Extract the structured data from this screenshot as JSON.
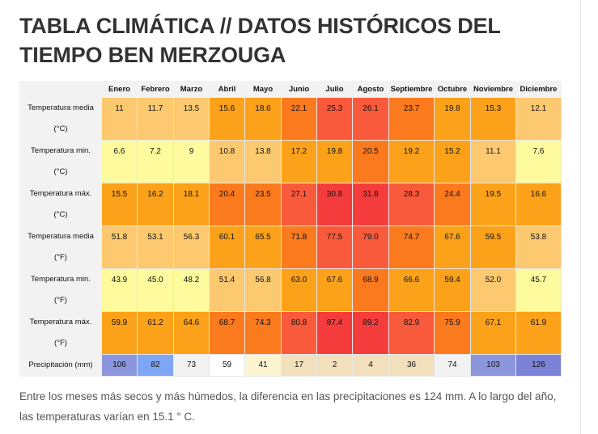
{
  "title": "TABLA CLIMÁTICA // DATOS HISTÓRICOS DEL TIEMPO BEN MERZOUGA",
  "table": {
    "months": [
      "Enero",
      "Febrero",
      "Marzo",
      "Abril",
      "Mayo",
      "Junio",
      "Julio",
      "Agosto",
      "Septiembre",
      "Octubre",
      "Noviembre",
      "Diciembre"
    ],
    "rows": [
      {
        "label": "Temperatura media",
        "unit": "(°C)",
        "values": [
          "11",
          "11.7",
          "13.5",
          "15.6",
          "18.6",
          "22.1",
          "25.3",
          "26.1",
          "23.7",
          "19.8",
          "15.3",
          "12.1"
        ],
        "colors": [
          "#fcc970",
          "#fcc970",
          "#fcc970",
          "#fba21a",
          "#fba21a",
          "#fb7a1e",
          "#fa5a3c",
          "#fa5a3c",
          "#fb7a1e",
          "#fba21a",
          "#fba21a",
          "#fcc970"
        ]
      },
      {
        "label": "Temperatura min.",
        "unit": "(°C)",
        "values": [
          "6.6",
          "7.2",
          "9",
          "10.8",
          "13.8",
          "17.2",
          "19.8",
          "20.5",
          "19.2",
          "15.2",
          "11.1",
          "7.6"
        ],
        "colors": [
          "#fefa9e",
          "#fefa9e",
          "#fefa9e",
          "#fcc970",
          "#fcc970",
          "#fba21a",
          "#fba21a",
          "#fb7a1e",
          "#fba21a",
          "#fba21a",
          "#fcc970",
          "#fefa9e"
        ]
      },
      {
        "label": "Temperatura máx.",
        "unit": "(°C)",
        "values": [
          "15.5",
          "16.2",
          "18.1",
          "20.4",
          "23.5",
          "27.1",
          "30.8",
          "31.8",
          "28.3",
          "24.4",
          "19.5",
          "16.6"
        ],
        "colors": [
          "#fba21a",
          "#fba21a",
          "#fba21a",
          "#fb7a1e",
          "#fb7a1e",
          "#fa5a3c",
          "#f53c3c",
          "#f53c3c",
          "#fa5a3c",
          "#fb7a1e",
          "#fba21a",
          "#fba21a"
        ]
      },
      {
        "label": "Temperatura media",
        "unit": "(°F)",
        "values": [
          "51.8",
          "53.1",
          "56.3",
          "60.1",
          "65.5",
          "71.8",
          "77.5",
          "79.0",
          "74.7",
          "67.6",
          "59.5",
          "53.8"
        ],
        "colors": [
          "#fcc970",
          "#fcc970",
          "#fcc970",
          "#fba21a",
          "#fba21a",
          "#fb7a1e",
          "#fa5a3c",
          "#fa5a3c",
          "#fb7a1e",
          "#fba21a",
          "#fba21a",
          "#fcc970"
        ]
      },
      {
        "label": "Temperatura min.",
        "unit": "(°F)",
        "values": [
          "43.9",
          "45.0",
          "48.2",
          "51.4",
          "56.8",
          "63.0",
          "67.6",
          "68.9",
          "66.6",
          "59.4",
          "52.0",
          "45.7"
        ],
        "colors": [
          "#fefa9e",
          "#fefa9e",
          "#fefa9e",
          "#fcc970",
          "#fcc970",
          "#fba21a",
          "#fba21a",
          "#fb7a1e",
          "#fba21a",
          "#fba21a",
          "#fcc970",
          "#fefa9e"
        ]
      },
      {
        "label": "Temperatura máx.",
        "unit": "(°F)",
        "values": [
          "59.9",
          "61.2",
          "64.6",
          "68.7",
          "74.3",
          "80.8",
          "87.4",
          "89.2",
          "82.9",
          "75.9",
          "67.1",
          "61.9"
        ],
        "colors": [
          "#fba21a",
          "#fba21a",
          "#fba21a",
          "#fb7a1e",
          "#fb7a1e",
          "#fa5a3c",
          "#f53c3c",
          "#f53c3c",
          "#fa5a3c",
          "#fb7a1e",
          "#fba21a",
          "#fba21a"
        ]
      },
      {
        "label": "Precipitación (mm)",
        "unit": "",
        "values": [
          "106",
          "82",
          "73",
          "59",
          "41",
          "17",
          "2",
          "4",
          "36",
          "74",
          "103",
          "126"
        ],
        "colors": [
          "#8c96dc",
          "#7ea6f4",
          "#f2f2f2",
          "#ffffff",
          "#fdf5d2",
          "#f2dfbb",
          "#f2dfbb",
          "#f2dfbb",
          "#f2dfbb",
          "#f2f2f2",
          "#8c96dc",
          "#7b82d8"
        ]
      }
    ]
  },
  "summary": "Entre los meses más secos y más húmedos, la diferencia en las precipitaciones es 124 mm. A lo largo del año, las temperaturas varían en 15.1 ° C."
}
